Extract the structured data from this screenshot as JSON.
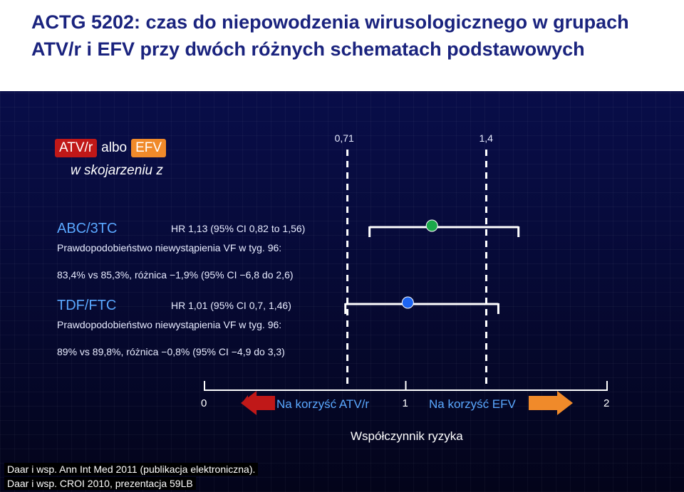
{
  "title": "ACTG 5202: czas do niepowodzenia wirusologicznego w grupach ATV/r i EFV przy dwóch różnych schematach podstawowych",
  "legend": {
    "atv_label": "ATV/r",
    "albo": "albo",
    "efv_label": "EFV",
    "subtitle": "w skojarzeniu z"
  },
  "reference_lines": [
    {
      "label": "0,71",
      "value": 0.71
    },
    {
      "label": "1,4",
      "value": 1.4
    }
  ],
  "rows": [
    {
      "regimen": "ABC/3TC",
      "hr_text": "HR 1,13 (95% CI 0,82 to 1,56)",
      "prob_text": "Prawdopodobieństwo niewystąpienia VF w tyg. 96:",
      "result_text": "83,4% vs 85,3%, różnica −1,9% (95% CI −6,8 do 2,6)"
    },
    {
      "regimen": "TDF/FTC",
      "hr_text": "HR 1,01 (95% CI 0,7, 1,46)",
      "prob_text": "Prawdopodobieństwo niewystąpienia VF w tyg. 96:",
      "result_text": "89% vs 89,8%, różnica −0,8% (95% CI −4,9 do 3,3)"
    }
  ],
  "axis": {
    "tick_labels": [
      "0",
      "1",
      "2"
    ],
    "favor_left": "Na korzyść ATV/r",
    "favor_right": "Na korzyść EFV",
    "title": "Współczynnik ryzyka"
  },
  "footer": [
    "Daar i wsp. Ann Int Med 2011 (publikacja elektroniczna).",
    "Daar i wsp. CROI 2010, prezentacja 59LB"
  ],
  "colors": {
    "abc_point": "#1aa84a",
    "tdf_point": "#1c64f2",
    "favor_left_arrow": "#c01818",
    "favor_right_arrow": "#f08a2a"
  },
  "chart_data": {
    "type": "forest",
    "xlim": [
      0,
      2
    ],
    "reference_values": [
      0.71,
      1.4
    ],
    "series": [
      {
        "name": "ABC/3TC",
        "hr": 1.13,
        "ci_low": 0.82,
        "ci_high": 1.56
      },
      {
        "name": "TDF/FTC",
        "hr": 1.01,
        "ci_low": 0.7,
        "ci_high": 1.46
      }
    ],
    "xlabel": "Współczynnik ryzyka"
  }
}
